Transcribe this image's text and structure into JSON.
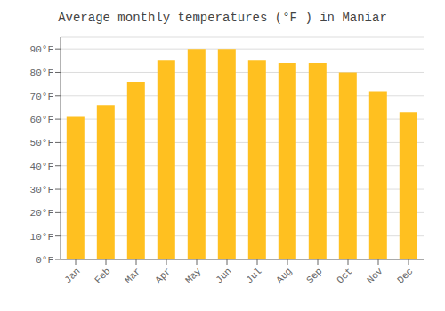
{
  "chart_data": {
    "type": "bar",
    "title": "Average monthly temperatures (°F ) in Maniar",
    "categories": [
      "Jan",
      "Feb",
      "Mar",
      "Apr",
      "May",
      "Jun",
      "Jul",
      "Aug",
      "Sep",
      "Oct",
      "Nov",
      "Dec"
    ],
    "values": [
      61,
      66,
      76,
      85,
      90,
      90,
      85,
      84,
      84,
      80,
      72,
      63
    ],
    "color": "#FFC020",
    "ylim": [
      0,
      95
    ],
    "yticks": [
      {
        "value": 0,
        "label": "0°F"
      },
      {
        "value": 10,
        "label": "10°F"
      },
      {
        "value": 20,
        "label": "20°F"
      },
      {
        "value": 30,
        "label": "30°F"
      },
      {
        "value": 40,
        "label": "40°F"
      },
      {
        "value": 50,
        "label": "50°F"
      },
      {
        "value": 60,
        "label": "60°F"
      },
      {
        "value": 70,
        "label": "70°F"
      },
      {
        "value": 80,
        "label": "80°F"
      },
      {
        "value": 90,
        "label": "90°F"
      }
    ],
    "grid": true
  }
}
